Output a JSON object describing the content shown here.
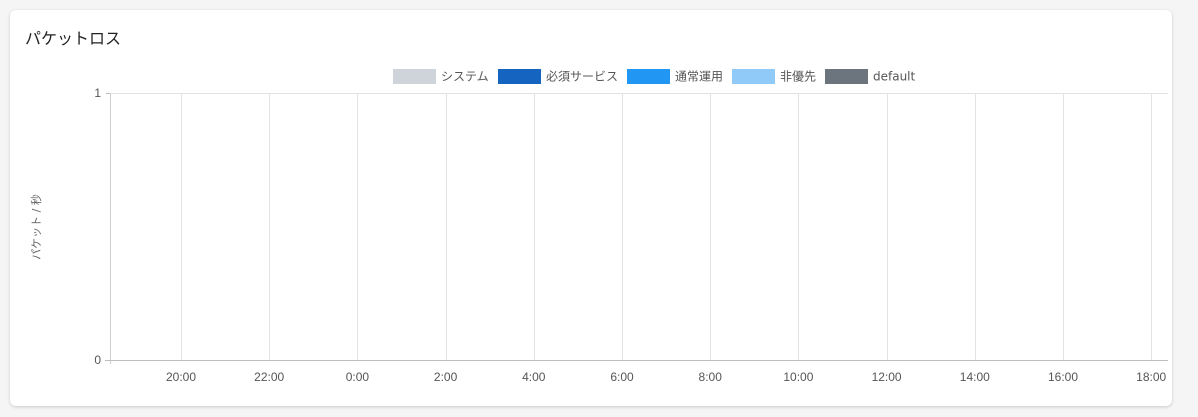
{
  "card": {
    "title": "パケットロス"
  },
  "chart_data": {
    "type": "area",
    "title": "パケットロス",
    "ylabel": "パケット / 秒",
    "xlabel": "",
    "ylim": [
      0,
      1
    ],
    "y_ticks": [
      "0",
      "1"
    ],
    "x_ticks": [
      "20:00",
      "22:00",
      "0:00",
      "2:00",
      "4:00",
      "6:00",
      "8:00",
      "10:00",
      "12:00",
      "14:00",
      "16:00",
      "18:00"
    ],
    "legend_position": "top",
    "grid": true,
    "series": [
      {
        "name": "システム",
        "color": "#ced4da",
        "values": []
      },
      {
        "name": "必須サービス",
        "color": "#1565c0",
        "values": []
      },
      {
        "name": "通常運用",
        "color": "#2196f3",
        "values": []
      },
      {
        "name": "非優先",
        "color": "#90caf9",
        "values": []
      },
      {
        "name": "default",
        "color": "#6c757d",
        "values": []
      }
    ]
  }
}
